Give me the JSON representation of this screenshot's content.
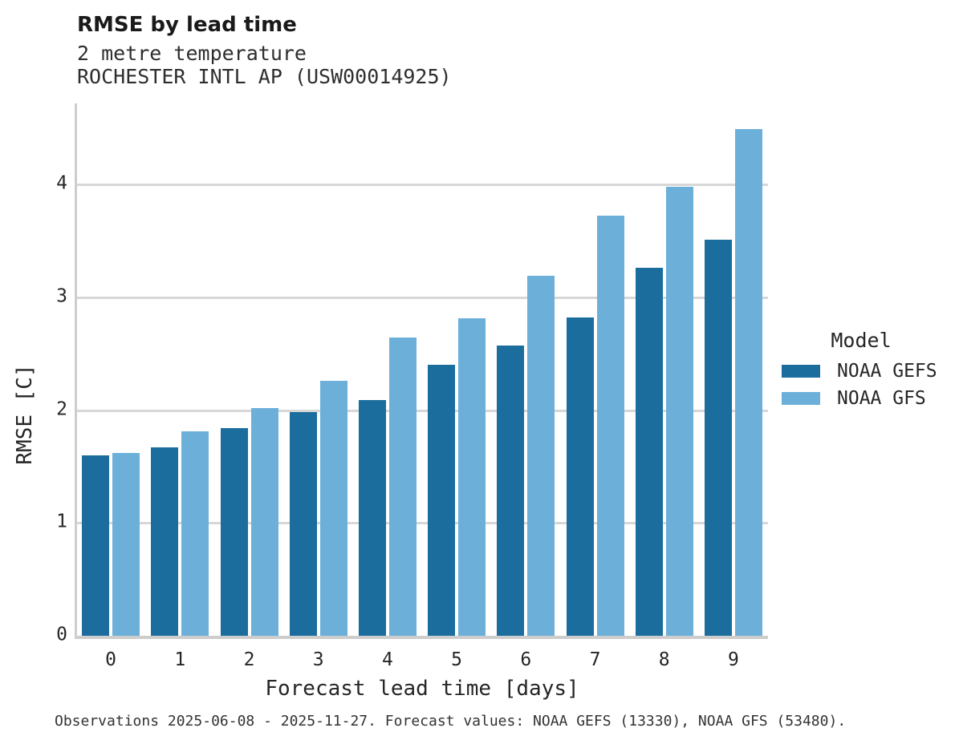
{
  "chart_data": {
    "type": "bar",
    "title": "RMSE by lead time",
    "subtitle": "2 metre temperature",
    "station": "ROCHESTER INTL AP (USW00014925)",
    "xlabel": "Forecast lead time [days]",
    "ylabel": "RMSE [C]",
    "categories": [
      "0",
      "1",
      "2",
      "3",
      "4",
      "5",
      "6",
      "7",
      "8",
      "9"
    ],
    "series": [
      {
        "name": "NOAA GEFS",
        "color": "#1a6d9c",
        "values": [
          1.6,
          1.67,
          1.84,
          1.98,
          2.09,
          2.4,
          2.57,
          2.82,
          3.26,
          3.51
        ]
      },
      {
        "name": "NOAA GFS",
        "color": "#6cb0d9",
        "values": [
          1.62,
          1.81,
          2.02,
          2.26,
          2.64,
          2.81,
          3.19,
          3.72,
          3.98,
          4.49
        ]
      }
    ],
    "yticks": [
      "0",
      "1",
      "2",
      "3",
      "4"
    ],
    "ylim": [
      0,
      4.72
    ],
    "grid": true,
    "legend_title": "Model",
    "legend_position": "right",
    "caption": "Observations 2025-06-08 - 2025-11-27. Forecast values: NOAA GEFS (13330), NOAA GFS (53480)."
  }
}
